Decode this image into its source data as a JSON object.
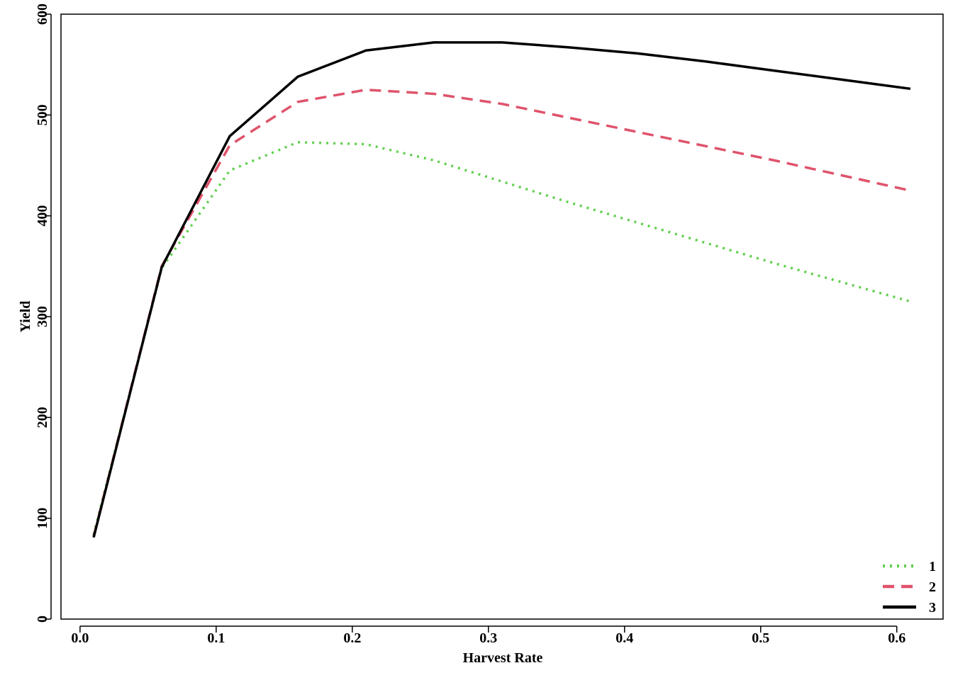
{
  "chart_data": {
    "type": "line",
    "xlabel": "Harvest Rate",
    "ylabel": "Yield",
    "x": [
      0.01,
      0.06,
      0.11,
      0.16,
      0.21,
      0.26,
      0.31,
      0.36,
      0.41,
      0.46,
      0.51,
      0.56,
      0.61
    ],
    "series": [
      {
        "name": "1",
        "color": "#61D04F",
        "dash": "dotted",
        "values": [
          84,
          348,
          445,
          473,
          471,
          455,
          434,
          413,
          393,
          373,
          353,
          334,
          315
        ]
      },
      {
        "name": "2",
        "color": "#DF536B",
        "dash": "dashed",
        "values": [
          82,
          350,
          470,
          513,
          525,
          521,
          511,
          497,
          483,
          469,
          455,
          440,
          425
        ]
      },
      {
        "name": "3",
        "color": "#000000",
        "dash": "solid",
        "values": [
          81,
          349,
          479,
          538,
          564,
          572,
          572,
          567,
          561,
          553,
          544,
          535,
          526
        ]
      }
    ],
    "xlim": [
      -0.014,
      0.634
    ],
    "ylim": [
      0,
      600
    ],
    "xticks": [
      {
        "value": 0,
        "label": "0.0"
      },
      0.1,
      0.2,
      0.3,
      0.4,
      0.5,
      0.6
    ],
    "yticks": [
      0,
      100,
      200,
      300,
      400,
      500,
      600
    ],
    "legend": "bottom-right"
  }
}
